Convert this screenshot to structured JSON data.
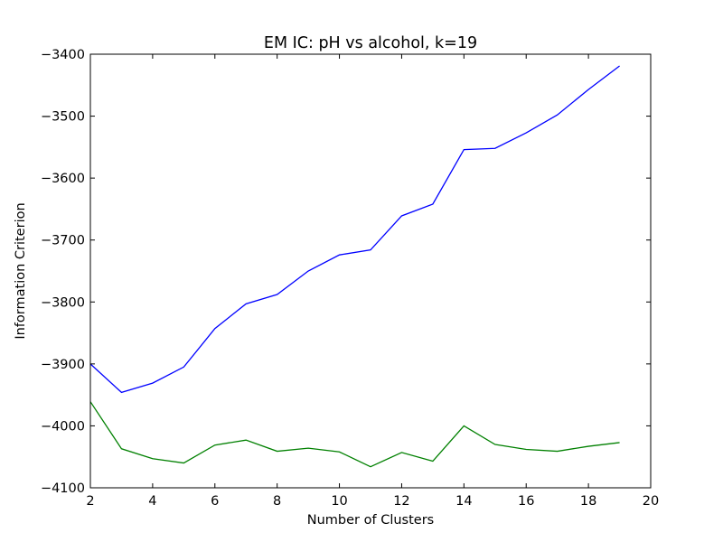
{
  "chart_data": {
    "type": "line",
    "title": "EM IC: pH vs alcohol, k=19",
    "xlabel": "Number of Clusters",
    "ylabel": "Information Criterion",
    "xlim": [
      2,
      20
    ],
    "ylim": [
      -4100,
      -3400
    ],
    "xticks": [
      2,
      4,
      6,
      8,
      10,
      12,
      14,
      16,
      18,
      20
    ],
    "yticks": [
      -4100,
      -4000,
      -3900,
      -3800,
      -3700,
      -3600,
      -3500,
      -3400
    ],
    "ytick_labels": [
      "−4100",
      "−4000",
      "−3900",
      "−3800",
      "−3700",
      "−3600",
      "−3500",
      "−3400"
    ],
    "x": [
      2,
      3,
      4,
      5,
      6,
      7,
      8,
      9,
      10,
      11,
      12,
      13,
      14,
      15,
      16,
      17,
      18,
      19
    ],
    "grid": false,
    "series": [
      {
        "color": "#0000ff",
        "values": [
          -3900,
          -3946,
          -3931,
          -3905,
          -3843,
          -3803,
          -3788,
          -3750,
          -3724,
          -3716,
          -3661,
          -3642,
          -3554,
          -3552,
          -3527,
          -3498,
          -3457,
          -3419
        ]
      },
      {
        "color": "#008000",
        "values": [
          -3961,
          -4037,
          -4053,
          -4060,
          -4031,
          -4023,
          -4041,
          -4036,
          -4042,
          -4066,
          -4043,
          -4057,
          -4000,
          -4030,
          -4038,
          -4041,
          -4033,
          -4027
        ]
      }
    ]
  }
}
